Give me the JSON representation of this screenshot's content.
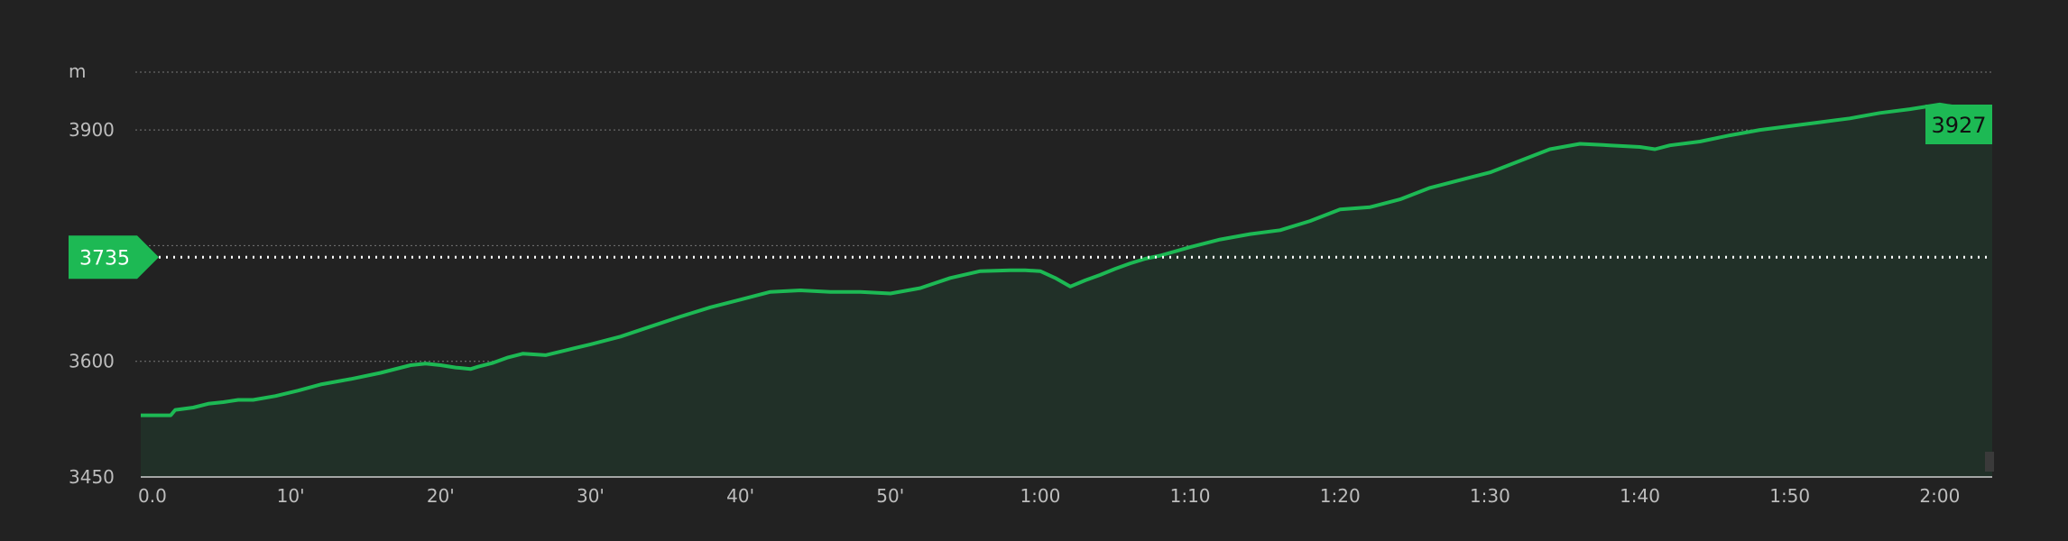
{
  "colors": {
    "background": "#222222",
    "line": "#1db954",
    "fill": "#213028",
    "grid": "#777777",
    "text": "#bdbdbd",
    "badge": "#1db954",
    "marker_line": "#ffffff"
  },
  "chart_data": {
    "type": "area",
    "ylabel": "m",
    "ylim": [
      3450,
      3975
    ],
    "yticks": [
      3450,
      3600,
      3900
    ],
    "xlim_minutes": [
      0,
      123.5
    ],
    "xticks": [
      {
        "label": "0.0",
        "value": 0
      },
      {
        "label": "10'",
        "value": 10
      },
      {
        "label": "20'",
        "value": 20
      },
      {
        "label": "30'",
        "value": 30
      },
      {
        "label": "40'",
        "value": 40
      },
      {
        "label": "50'",
        "value": 50
      },
      {
        "label": "1:00",
        "value": 60
      },
      {
        "label": "1:10",
        "value": 70
      },
      {
        "label": "1:20",
        "value": 80
      },
      {
        "label": "1:30",
        "value": 90
      },
      {
        "label": "1:40",
        "value": 100
      },
      {
        "label": "1:50",
        "value": 110
      },
      {
        "label": "2:00",
        "value": 120
      }
    ],
    "grid": true,
    "series": [
      {
        "x": [
          0,
          2,
          2.3,
          3.5,
          4.5,
          5.5,
          6.5,
          7.5,
          9,
          10.5,
          12,
          14,
          16,
          18,
          19,
          20,
          21,
          22,
          22.5,
          23.5,
          24.5,
          25.5,
          27,
          28.5,
          30,
          32,
          34,
          36,
          38,
          40,
          42,
          44,
          46,
          48,
          50,
          52,
          54,
          56,
          58,
          59,
          60,
          61,
          62,
          63,
          64,
          65,
          66,
          67,
          68,
          70,
          72,
          74,
          76,
          78,
          80,
          82,
          84,
          86,
          88,
          90,
          92,
          94,
          96,
          98,
          100,
          101,
          102,
          104,
          106,
          108,
          110,
          112,
          114,
          116,
          118,
          120,
          122,
          123.5
        ],
        "y": [
          3530,
          3530,
          3537,
          3540,
          3545,
          3547,
          3550,
          3550,
          3555,
          3562,
          3570,
          3577,
          3585,
          3595,
          3597,
          3595,
          3592,
          3590,
          3593,
          3598,
          3605,
          3610,
          3608,
          3615,
          3622,
          3632,
          3645,
          3658,
          3670,
          3680,
          3690,
          3692,
          3690,
          3690,
          3688,
          3695,
          3708,
          3717,
          3718,
          3718,
          3717,
          3708,
          3697,
          3705,
          3712,
          3720,
          3727,
          3733,
          3737,
          3748,
          3758,
          3765,
          3770,
          3782,
          3797,
          3800,
          3810,
          3825,
          3835,
          3845,
          3860,
          3875,
          3882,
          3880,
          3878,
          3875,
          3880,
          3885,
          3893,
          3900,
          3905,
          3910,
          3915,
          3922,
          3927,
          3933,
          3927,
          3927
        ]
      }
    ],
    "reference_line": {
      "value": 3735,
      "label": "3735"
    },
    "end_label": "3927"
  }
}
